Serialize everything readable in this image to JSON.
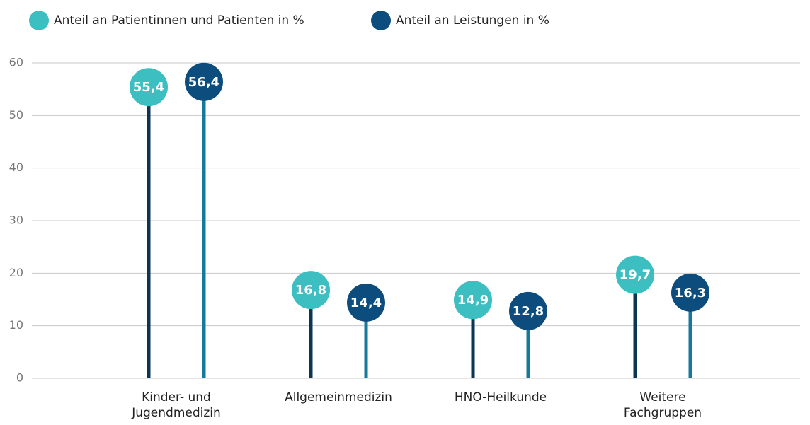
{
  "chart_data": {
    "type": "lollipop",
    "categories": [
      "Kinder- und Jugendmedizin",
      "Allgemeinmedizin",
      "HNO-Heilkunde",
      "Weitere Fachgruppen"
    ],
    "series": [
      {
        "name": "Anteil an Patientinnen und Patienten in %",
        "color": "#3dbfc1",
        "stem_color": "#0c3553",
        "values": [
          55.4,
          16.8,
          14.9,
          19.7
        ],
        "value_labels": [
          "55,4",
          "16,8",
          "14,9",
          "19,7"
        ]
      },
      {
        "name": "Anteil an Leistungen in %",
        "color": "#0d4d7d",
        "stem_color": "#16789a",
        "values": [
          56.4,
          14.4,
          12.8,
          16.3
        ],
        "value_labels": [
          "56,4",
          "14,4",
          "12,8",
          "16,3"
        ]
      }
    ],
    "ylim": [
      0,
      60
    ],
    "yticks": [
      0,
      10,
      20,
      30,
      40,
      50,
      60
    ],
    "grid": true,
    "legend": "top-left"
  }
}
